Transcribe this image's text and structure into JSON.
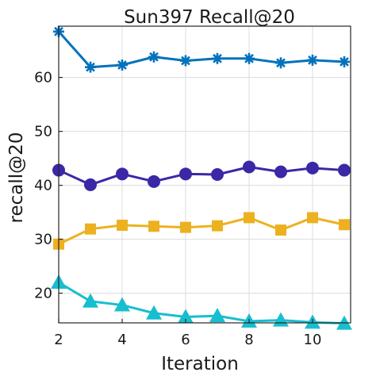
{
  "chart_data": {
    "type": "line",
    "title": "Sun397 Recall@20",
    "xlabel": "Iteration",
    "ylabel": "recall@20",
    "xlim": [
      2,
      11.2
    ],
    "ylim": [
      14.5,
      69.5
    ],
    "xticks": [
      2,
      4,
      6,
      8,
      10
    ],
    "yticks": [
      20,
      30,
      40,
      50,
      60
    ],
    "grid": true,
    "x": [
      2,
      3,
      4,
      5,
      6,
      7,
      8,
      9,
      10,
      11
    ],
    "series": [
      {
        "marker": "asterisk",
        "color": "#0072BD",
        "values": [
          68.5,
          61.9,
          62.3,
          63.8,
          63.1,
          63.5,
          63.5,
          62.7,
          63.2,
          62.9
        ]
      },
      {
        "marker": "circle",
        "color": "#3A28A6",
        "values": [
          42.8,
          40.1,
          42.1,
          40.7,
          42.1,
          42.0,
          43.4,
          42.5,
          43.2,
          42.8
        ]
      },
      {
        "marker": "square",
        "color": "#EDB120",
        "values": [
          29.1,
          31.9,
          32.6,
          32.4,
          32.2,
          32.5,
          34.0,
          31.7,
          34.0,
          32.7
        ]
      },
      {
        "marker": "triangle",
        "color": "#17BECF",
        "values": [
          22.0,
          18.5,
          17.8,
          16.3,
          15.6,
          15.8,
          14.8,
          15.0,
          14.6,
          14.4
        ]
      }
    ]
  }
}
